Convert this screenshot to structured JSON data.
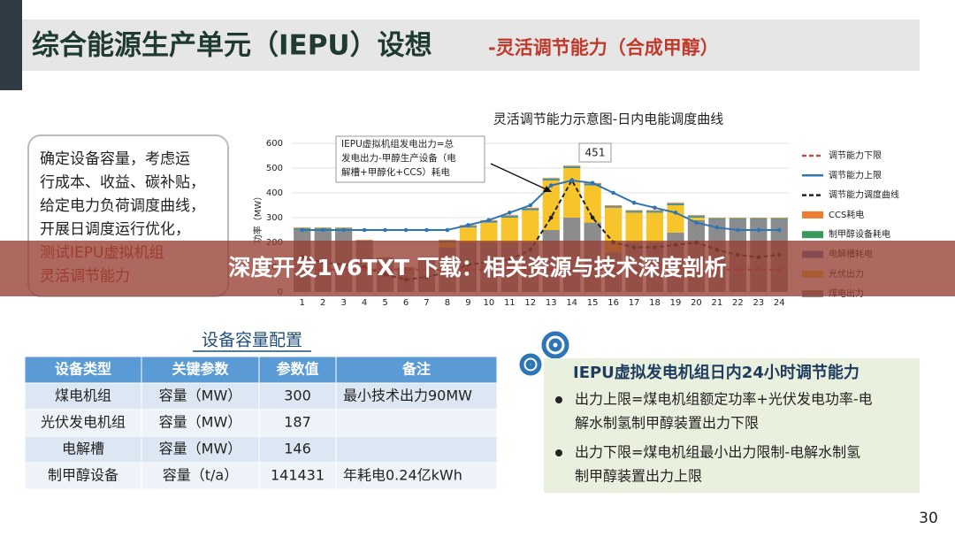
{
  "header": {
    "title": "综合能源生产单元（IEPU）设想",
    "subtitle": "-灵活调节能力（合成甲醇）"
  },
  "left_note": {
    "lines": [
      "确定设备容量，考虑运",
      "行成本、收益、碳补贴，",
      "给定电力负荷调度曲线，",
      "开展日调度运行优化，",
      "测试IEPU虚拟机组",
      "灵活调节能力"
    ]
  },
  "chart_data": {
    "type": "bar",
    "title": "灵活调节能力示意图-日内电能调度曲线",
    "ylabel": "功率（MW）",
    "annotation": [
      "IEPU虚拟机组发电出力=总",
      "发电出力-甲醇生产设备（电",
      "解槽+甲醇化+CCS）耗电"
    ],
    "peak_label": "451",
    "categories": [
      1,
      2,
      3,
      4,
      5,
      6,
      7,
      8,
      9,
      10,
      11,
      12,
      13,
      14,
      15,
      16,
      17,
      18,
      19,
      20,
      21,
      22,
      23,
      24
    ],
    "ylim": [
      0,
      600
    ],
    "yticks": [
      0,
      100,
      200,
      300,
      400,
      500,
      600
    ],
    "series": [
      {
        "name": "煤电出力",
        "kind": "bar",
        "color": "#8c8c8c",
        "values": [
          250,
          250,
          250,
          200,
          130,
          90,
          130,
          180,
          200,
          200,
          200,
          200,
          250,
          300,
          280,
          160,
          200,
          200,
          240,
          290,
          290,
          290,
          290,
          290
        ]
      },
      {
        "name": "光伏出力",
        "kind": "bar",
        "color": "#f7c52b",
        "values": [
          0,
          0,
          0,
          0,
          0,
          0,
          0,
          20,
          60,
          80,
          100,
          130,
          200,
          200,
          150,
          180,
          120,
          120,
          110,
          10,
          0,
          0,
          0,
          0
        ]
      },
      {
        "name": "电解槽耗电",
        "kind": "bar",
        "color": "#4f81bd",
        "values": [
          4,
          4,
          4,
          4,
          4,
          4,
          4,
          4,
          4,
          4,
          4,
          4,
          4,
          4,
          4,
          4,
          4,
          4,
          4,
          4,
          4,
          4,
          4,
          4
        ]
      },
      {
        "name": "制甲醇设备耗电",
        "kind": "bar",
        "color": "#3a9a5b",
        "values": [
          3,
          3,
          3,
          3,
          3,
          3,
          3,
          3,
          3,
          3,
          3,
          3,
          3,
          3,
          3,
          3,
          3,
          3,
          3,
          3,
          3,
          3,
          3,
          3
        ]
      },
      {
        "name": "CCS耗电",
        "kind": "bar",
        "color": "#ed7d31",
        "values": [
          3,
          3,
          3,
          3,
          3,
          3,
          3,
          3,
          3,
          3,
          3,
          3,
          3,
          3,
          3,
          3,
          3,
          3,
          3,
          3,
          3,
          3,
          3,
          3
        ]
      },
      {
        "name": "调节能力调度曲线",
        "kind": "line",
        "color": "#222222",
        "dash": true,
        "values": [
          140,
          120,
          110,
          100,
          70,
          50,
          60,
          80,
          110,
          120,
          130,
          170,
          300,
          451,
          300,
          200,
          180,
          180,
          190,
          200,
          170,
          150,
          140,
          150
        ]
      },
      {
        "name": "调节能力上限",
        "kind": "line",
        "color": "#2e75b6",
        "dash": false,
        "values": [
          250,
          250,
          250,
          250,
          250,
          250,
          250,
          250,
          270,
          290,
          320,
          350,
          430,
          450,
          440,
          400,
          360,
          340,
          320,
          280,
          260,
          250,
          250,
          250
        ]
      },
      {
        "name": "调节能力下限",
        "kind": "line",
        "color": "#c0504d",
        "dash": true,
        "values": [
          90,
          90,
          90,
          90,
          90,
          90,
          90,
          90,
          90,
          90,
          90,
          90,
          90,
          90,
          90,
          90,
          90,
          90,
          90,
          90,
          90,
          90,
          90,
          90
        ]
      }
    ]
  },
  "table": {
    "title": "设备容量配置",
    "header": [
      "设备类型",
      "关键参数",
      "参数值",
      "备注"
    ],
    "rows": [
      [
        "煤电机组",
        "容量（MW）",
        300,
        "最小技术出力90MW"
      ],
      [
        "光伏发电机组",
        "容量（MW）",
        187
      ],
      [
        "电解槽",
        "容量（MW）",
        146
      ],
      [
        "制甲醇设备",
        "容量（t/a）",
        141431,
        "年耗电0.24亿kWh"
      ]
    ]
  },
  "right_box": {
    "title": "IEPU虚拟发电机组日内24小时调节能力",
    "bullets": [
      [
        "出力上限=煤电机组额定功率+光伏发电功率-电",
        "解水制氢制甲醇装置出力下限"
      ],
      [
        "出力下限=煤电机组最小出力限制-电解水制氢",
        "制甲醇装置出力上限"
      ]
    ]
  },
  "page_number": "30",
  "banner": "深度开发1v6TXT 下载：相关资源与技术深度剖析"
}
